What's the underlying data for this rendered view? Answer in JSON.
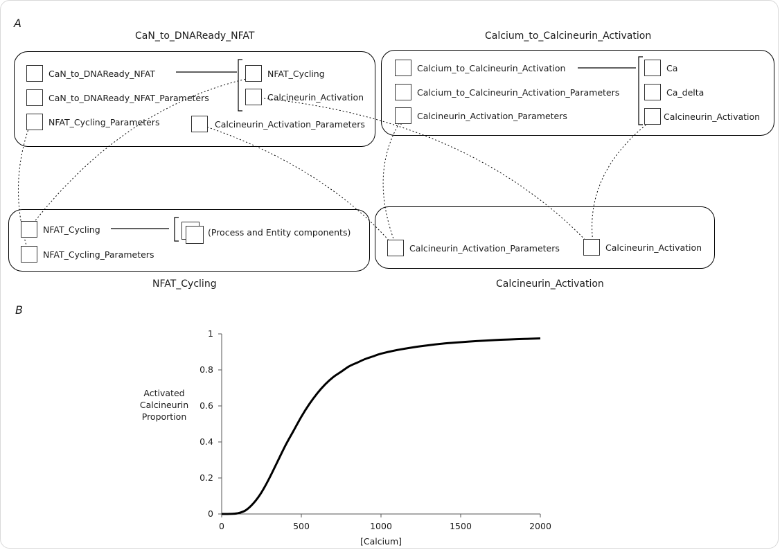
{
  "panel_a": {
    "letter": "A",
    "groups": {
      "can": {
        "title": "CaN_to_DNAReady_NFAT",
        "items": [
          "CaN_to_DNAReady_NFAT",
          "CaN_to_DNAReady_NFAT_Parameters",
          "NFAT_Cycling_Parameters",
          "Calcineurin_Activation_Parameters"
        ],
        "imports": [
          "NFAT_Cycling",
          "Calcineurin_Activation"
        ]
      },
      "calcium": {
        "title": "Calcium_to_Calcineurin_Activation",
        "items": [
          "Calcium_to_Calcineurin_Activation",
          "Calcium_to_Calcineurin_Activation_Parameters",
          "Calcineurin_Activation_Parameters"
        ],
        "imports": [
          "Ca",
          "Ca_delta",
          "Calcineurin_Activation"
        ]
      },
      "nfat": {
        "title": "NFAT_Cycling",
        "items": [
          "NFAT_Cycling",
          "NFAT_Cycling_Parameters"
        ],
        "imports": [
          "(Process and Entity components)"
        ]
      },
      "calcineurin": {
        "title": "Calcineurin_Activation",
        "items": [
          "Calcineurin_Activation_Parameters",
          "Calcineurin_Activation"
        ]
      }
    }
  },
  "panel_b": {
    "letter": "B",
    "chart_data": {
      "type": "line",
      "title": "",
      "xlabel": "[Calcium]",
      "ylabel_lines": [
        "Activated",
        "Calcineurin",
        "Proportion"
      ],
      "xlim": [
        0,
        2000
      ],
      "ylim": [
        0,
        1
      ],
      "x_ticks": [
        0,
        500,
        1000,
        1500,
        2000
      ],
      "y_ticks": [
        0,
        0.2,
        0.4,
        0.6,
        0.8,
        1
      ],
      "grid": false,
      "line_color": "#000000",
      "series": [
        {
          "x": [
            0,
            50,
            100,
            150,
            200,
            250,
            300,
            350,
            400,
            450,
            500,
            550,
            600,
            650,
            700,
            750,
            800,
            850,
            900,
            950,
            1000,
            1100,
            1200,
            1300,
            1400,
            1500,
            1600,
            1700,
            1800,
            1900,
            2000
          ],
          "y": [
            0,
            0.0002,
            0.004,
            0.02,
            0.06,
            0.12,
            0.2,
            0.29,
            0.38,
            0.46,
            0.54,
            0.61,
            0.67,
            0.72,
            0.76,
            0.79,
            0.82,
            0.84,
            0.86,
            0.875,
            0.89,
            0.91,
            0.925,
            0.937,
            0.947,
            0.954,
            0.96,
            0.965,
            0.969,
            0.972,
            0.975
          ]
        }
      ]
    }
  }
}
